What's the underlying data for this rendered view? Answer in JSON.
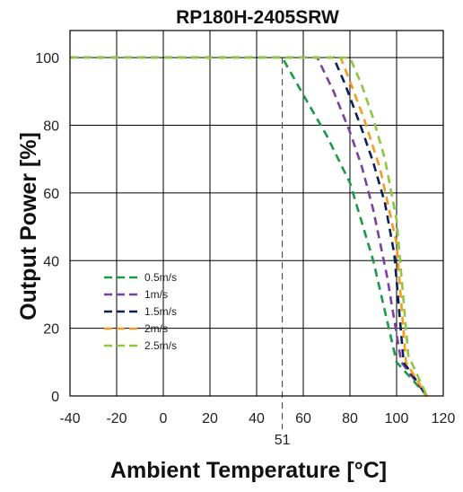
{
  "chart_data": {
    "type": "line",
    "title": "RP180H-2405SRW",
    "xlabel": "Ambient Temperature [°C]",
    "ylabel": "Output Power [%]",
    "xlim": [
      -40,
      120
    ],
    "ylim": [
      0,
      108
    ],
    "xticks": [
      -40,
      -20,
      0,
      20,
      40,
      60,
      80,
      100,
      120
    ],
    "yticks": [
      0,
      20,
      40,
      60,
      80,
      100
    ],
    "grid": true,
    "legend_position": "lower-left",
    "marker_line": {
      "x": 51,
      "label": "51"
    },
    "series": [
      {
        "name": "0.5m/s",
        "color": "#1a9a48",
        "x": [
          -40,
          51,
          60,
          70,
          80,
          90,
          100,
          113
        ],
        "y": [
          100,
          100,
          89,
          77,
          63,
          40,
          10,
          0
        ]
      },
      {
        "name": "1m/s",
        "color": "#7b3fa0",
        "x": [
          -40,
          66,
          73,
          80,
          85,
          90,
          96,
          102,
          113
        ],
        "y": [
          100,
          100,
          90,
          78,
          68,
          55,
          35,
          10,
          0
        ]
      },
      {
        "name": "1.5m/s",
        "color": "#0c2052",
        "x": [
          -40,
          73,
          78,
          85,
          90,
          95,
          99,
          103,
          113
        ],
        "y": [
          100,
          100,
          92,
          79,
          69,
          57,
          42,
          10,
          0
        ]
      },
      {
        "name": "2m/s",
        "color": "#f39a1f",
        "x": [
          -40,
          76,
          80,
          86,
          93,
          100,
          104,
          113
        ],
        "y": [
          100,
          100,
          93,
          82,
          67,
          45,
          10,
          0
        ]
      },
      {
        "name": "2.5m/s",
        "color": "#8ec63f",
        "x": [
          -40,
          80,
          85,
          90,
          95,
          100,
          105,
          113
        ],
        "y": [
          100,
          100,
          92,
          82,
          70,
          52,
          12,
          0
        ]
      }
    ]
  }
}
